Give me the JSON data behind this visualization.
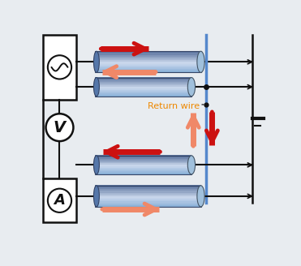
{
  "bg_color": "#e8ecf0",
  "wire_color": "#111111",
  "blue_wire_color": "#5588cc",
  "red_arrow_color": "#cc1111",
  "salmon_arrow_color": "#f08868",
  "return_wire_label": "Return wire",
  "label_color": "#ee8800",
  "coil_body_dark": "#2a4a7a",
  "coil_body_mid": "#4a7aaa",
  "coil_body_light": "#9abbd8",
  "coil_cap_light": "#c8dded",
  "coil_cap_dark": "#6688aa"
}
